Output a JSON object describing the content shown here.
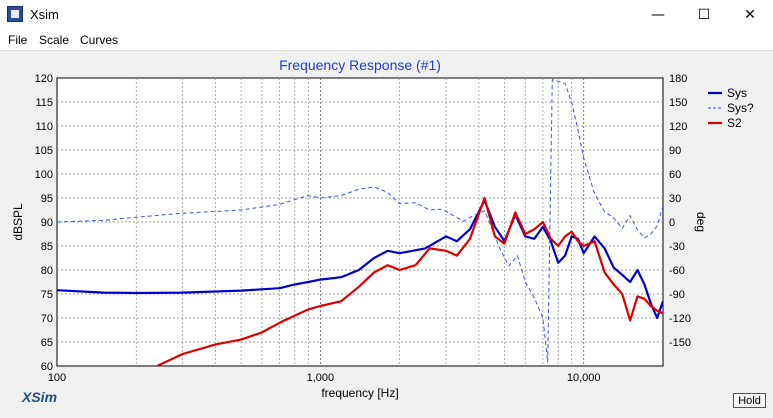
{
  "window": {
    "title": "Xsim",
    "minimize_glyph": "—",
    "maximize_glyph": "☐",
    "close_glyph": "✕"
  },
  "menu": {
    "items": [
      {
        "label": "File"
      },
      {
        "label": "Scale"
      },
      {
        "label": "Curves"
      }
    ]
  },
  "brand": "XSim",
  "hold_label": "Hold",
  "chart_data": {
    "type": "line",
    "title": "Frequency Response (#1)",
    "xlabel": "frequency [Hz]",
    "ylabel": "dBSPL",
    "y2label": "deg",
    "x_scale": "log",
    "xlim": [
      100,
      20000
    ],
    "ylim": [
      60,
      120
    ],
    "y2lim": [
      -180,
      180
    ],
    "x_tick_values": [
      100,
      1000,
      10000
    ],
    "x_tick_labels": [
      "100",
      "1,000",
      "10,000"
    ],
    "y_ticks": [
      60,
      65,
      70,
      75,
      80,
      85,
      90,
      95,
      100,
      105,
      110,
      115,
      120
    ],
    "y2_ticks": [
      -150,
      -120,
      -90,
      -60,
      -30,
      0,
      30,
      60,
      90,
      120,
      150,
      180
    ],
    "grid": true,
    "legend_position": "top-right",
    "series": [
      {
        "name": "Sys",
        "axis": "left",
        "color": "#0000cc",
        "style": "solid-thick",
        "x": [
          100,
          150,
          200,
          300,
          500,
          700,
          800,
          900,
          1000,
          1200,
          1400,
          1600,
          1800,
          2000,
          2500,
          3000,
          3300,
          3700,
          4200,
          4600,
          5000,
          5500,
          6000,
          6500,
          7000,
          7500,
          8000,
          8500,
          9000,
          9500,
          10000,
          11000,
          12000,
          13000,
          14000,
          15000,
          16000,
          17000,
          18000,
          19000,
          20000
        ],
        "y": [
          75.8,
          75.3,
          75.2,
          75.3,
          75.7,
          76.2,
          77.0,
          77.5,
          78.0,
          78.5,
          80.0,
          82.5,
          84.0,
          83.5,
          84.5,
          87.0,
          86.0,
          88.5,
          94.5,
          89.0,
          86.0,
          91.5,
          87.0,
          86.5,
          89.0,
          86.0,
          81.5,
          83.0,
          87.0,
          86.5,
          83.5,
          87.0,
          84.5,
          80.5,
          79.0,
          77.5,
          80.0,
          77.0,
          73.0,
          70.0,
          73.5
        ]
      },
      {
        "name": "Sys?",
        "axis": "right",
        "color": "#3355ee",
        "style": "dashed",
        "x": [
          100,
          150,
          200,
          300,
          500,
          700,
          800,
          900,
          1000,
          1200,
          1400,
          1600,
          1800,
          2000,
          2300,
          2600,
          2900,
          3200,
          3500,
          3800,
          4200,
          4500,
          4800,
          5200,
          5600,
          6000,
          6500,
          7000,
          7300,
          7600,
          8000,
          8500,
          9000,
          9500,
          10000,
          11000,
          12000,
          13000,
          14000,
          15000,
          16000,
          17000,
          18000,
          19000,
          20000
        ],
        "y": [
          0,
          2,
          6,
          11,
          15,
          22,
          28,
          33,
          30,
          33,
          41,
          44,
          37,
          23,
          24,
          15,
          16,
          8,
          1,
          8,
          14,
          -10,
          -33,
          -55,
          -42,
          -75,
          -95,
          -120,
          -175,
          178,
          176,
          173,
          150,
          115,
          80,
          35,
          13,
          5,
          -8,
          8,
          -10,
          -20,
          -15,
          -5,
          20
        ]
      },
      {
        "name": "S2",
        "axis": "left",
        "color": "#dd0000",
        "style": "solid-thick",
        "x": [
          240,
          300,
          400,
          500,
          600,
          700,
          800,
          900,
          1000,
          1200,
          1400,
          1600,
          1800,
          2000,
          2300,
          2600,
          3000,
          3300,
          3700,
          4200,
          4600,
          5000,
          5500,
          6000,
          6500,
          7000,
          7500,
          8000,
          8500,
          9000,
          9500,
          10000,
          11000,
          12000,
          13000,
          14000,
          15000,
          16000,
          17000,
          18000,
          19000,
          20000
        ],
        "y": [
          60.0,
          62.5,
          64.5,
          65.5,
          67.0,
          69.0,
          70.5,
          71.8,
          72.5,
          73.5,
          76.5,
          79.5,
          81.0,
          80.0,
          81.0,
          84.5,
          84.0,
          83.0,
          86.5,
          95.0,
          87.0,
          85.5,
          92.0,
          87.5,
          88.5,
          90.0,
          86.5,
          85.0,
          87.0,
          88.0,
          86.0,
          85.0,
          86.0,
          79.5,
          77.0,
          75.0,
          69.5,
          74.5,
          74.0,
          72.5,
          71.5,
          71.0
        ]
      }
    ]
  }
}
